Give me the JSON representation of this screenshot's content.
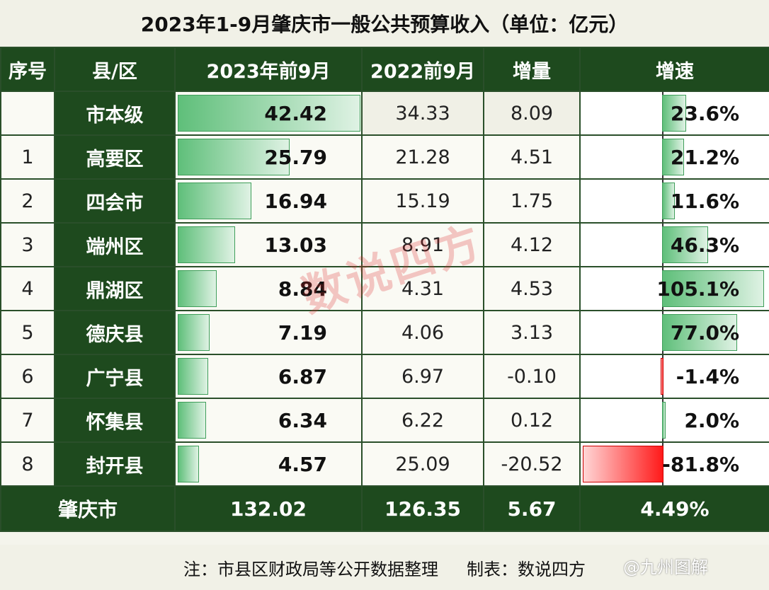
{
  "title": "2023年1-9月肇庆市一般公共预算收入（单位：亿元）",
  "headers": {
    "seq": "序号",
    "region": "县/区",
    "y2023": "2023年前9月",
    "y2022": "2022前9月",
    "delta": "增量",
    "growth": "增速"
  },
  "chart_data": {
    "type": "table",
    "columns": [
      "序号",
      "县/区",
      "2023年前9月",
      "2022前9月",
      "增量",
      "增速"
    ],
    "rows": [
      {
        "seq": "",
        "region": "市本级",
        "y2023": 42.42,
        "y2022": 34.33,
        "delta": 8.09,
        "growth": 23.6,
        "y2023_label": "42.42",
        "y2022_label": "34.33",
        "delta_label": "8.09",
        "growth_label": "23.6%"
      },
      {
        "seq": "1",
        "region": "高要区",
        "y2023": 25.79,
        "y2022": 21.28,
        "delta": 4.51,
        "growth": 21.2,
        "y2023_label": "25.79",
        "y2022_label": "21.28",
        "delta_label": "4.51",
        "growth_label": "21.2%"
      },
      {
        "seq": "2",
        "region": "四会市",
        "y2023": 16.94,
        "y2022": 15.19,
        "delta": 1.75,
        "growth": 11.6,
        "y2023_label": "16.94",
        "y2022_label": "15.19",
        "delta_label": "1.75",
        "growth_label": "11.6%"
      },
      {
        "seq": "3",
        "region": "端州区",
        "y2023": 13.03,
        "y2022": 8.91,
        "delta": 4.12,
        "growth": 46.3,
        "y2023_label": "13.03",
        "y2022_label": "8.91",
        "delta_label": "4.12",
        "growth_label": "46.3%"
      },
      {
        "seq": "4",
        "region": "鼎湖区",
        "y2023": 8.84,
        "y2022": 4.31,
        "delta": 4.53,
        "growth": 105.1,
        "y2023_label": "8.84",
        "y2022_label": "4.31",
        "delta_label": "4.53",
        "growth_label": "105.1%"
      },
      {
        "seq": "5",
        "region": "德庆县",
        "y2023": 7.19,
        "y2022": 4.06,
        "delta": 3.13,
        "growth": 77.0,
        "y2023_label": "7.19",
        "y2022_label": "4.06",
        "delta_label": "3.13",
        "growth_label": "77.0%"
      },
      {
        "seq": "6",
        "region": "广宁县",
        "y2023": 6.87,
        "y2022": 6.97,
        "delta": -0.1,
        "growth": -1.4,
        "y2023_label": "6.87",
        "y2022_label": "6.97",
        "delta_label": "-0.10",
        "growth_label": "-1.4%"
      },
      {
        "seq": "7",
        "region": "怀集县",
        "y2023": 6.34,
        "y2022": 6.22,
        "delta": 0.12,
        "growth": 2.0,
        "y2023_label": "6.34",
        "y2022_label": "6.22",
        "delta_label": "0.12",
        "growth_label": "2.0%"
      },
      {
        "seq": "8",
        "region": "封开县",
        "y2023": 4.57,
        "y2022": 25.09,
        "delta": -20.52,
        "growth": -81.8,
        "y2023_label": "4.57",
        "y2022_label": "25.09",
        "delta_label": "-20.52",
        "growth_label": "-81.8%"
      }
    ],
    "total": {
      "region": "肇庆市",
      "y2023": "132.02",
      "y2022": "126.35",
      "delta": "5.67",
      "growth": "4.49%"
    },
    "colors": {
      "positive_bar": "#5fbf7a",
      "negative_bar": "#ff1a1a",
      "header_bg": "#1e4a1e"
    }
  },
  "footer": {
    "note": "注：市县区财政局等公开数据整理",
    "maker": "制表：数说四方"
  },
  "watermark": "@九州图解",
  "stamp": "数说四方"
}
